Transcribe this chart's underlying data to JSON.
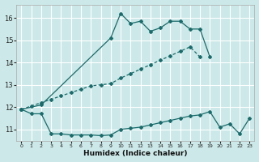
{
  "xlabel": "Humidex (Indice chaleur)",
  "bg_color": "#cce8e8",
  "grid_color": "#ffffff",
  "line_color": "#1a6b6b",
  "xlim": [
    -0.5,
    23.5
  ],
  "ylim": [
    10.5,
    16.6
  ],
  "yticks": [
    11,
    12,
    13,
    14,
    15,
    16
  ],
  "xticks": [
    0,
    1,
    2,
    3,
    4,
    5,
    6,
    7,
    8,
    9,
    10,
    11,
    12,
    13,
    14,
    15,
    16,
    17,
    18,
    19,
    20,
    21,
    22,
    23
  ],
  "line1_x": [
    0,
    1,
    2,
    3,
    4,
    5,
    6,
    7,
    8,
    9,
    10,
    11,
    12,
    13,
    14,
    15,
    16,
    17,
    18,
    19,
    20,
    21,
    22,
    23
  ],
  "line1_y": [
    11.9,
    11.7,
    11.7,
    10.8,
    10.8,
    10.75,
    10.75,
    10.75,
    10.72,
    10.75,
    11.0,
    11.05,
    11.1,
    11.2,
    11.3,
    11.4,
    11.5,
    11.6,
    11.65,
    11.8,
    11.1,
    11.25,
    10.8,
    11.5
  ],
  "line2_x": [
    0,
    1,
    2,
    3,
    4,
    5,
    6,
    7,
    8,
    9,
    10,
    11,
    12,
    13,
    14,
    15,
    16,
    17,
    18
  ],
  "line2_y": [
    11.9,
    12.05,
    12.2,
    12.35,
    12.5,
    12.65,
    12.8,
    12.95,
    13.0,
    13.05,
    13.3,
    13.5,
    13.7,
    13.9,
    14.1,
    14.3,
    14.5,
    14.7,
    14.25
  ],
  "line3_x": [
    0,
    2,
    9,
    10,
    11,
    12,
    13,
    14,
    15,
    16,
    17,
    18,
    19
  ],
  "line3_y": [
    11.9,
    12.1,
    15.1,
    16.2,
    15.75,
    15.85,
    15.4,
    15.55,
    15.85,
    15.85,
    15.5,
    15.5,
    14.25
  ]
}
